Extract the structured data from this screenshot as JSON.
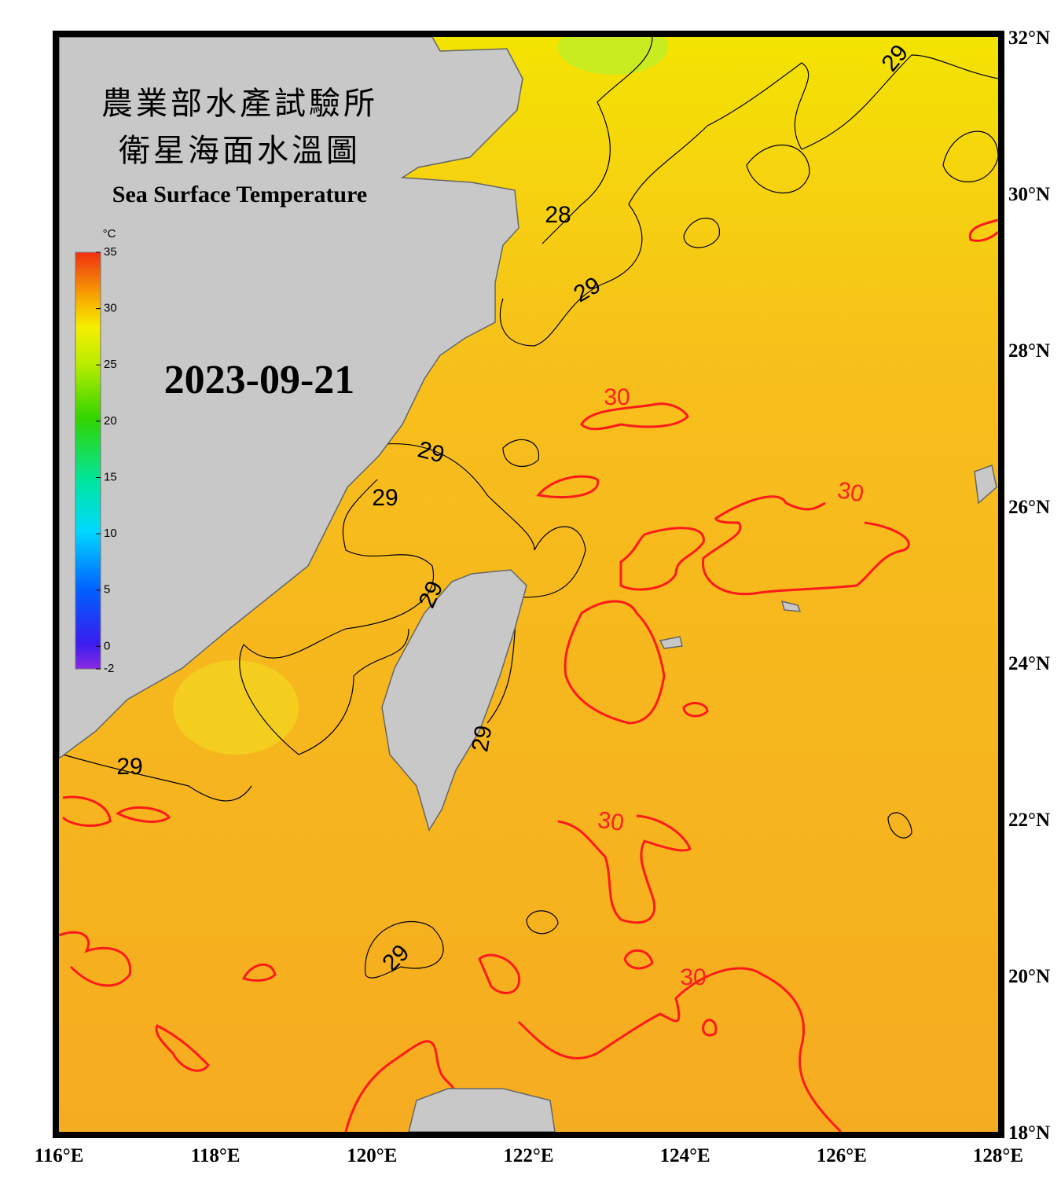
{
  "map": {
    "title_lines": [
      "農業部水產試驗所",
      "衛星海面水溫圖"
    ],
    "subtitle": "Sea Surface Temperature",
    "date": "2023-09-21",
    "lonlim": [
      116,
      128
    ],
    "latlim": [
      18,
      32
    ],
    "lon_ticks": [
      {
        "value": 116,
        "label": "116°E"
      },
      {
        "value": 118,
        "label": "118°E"
      },
      {
        "value": 120,
        "label": "120°E"
      },
      {
        "value": 122,
        "label": "122°E"
      },
      {
        "value": 124,
        "label": "124°E"
      },
      {
        "value": 126,
        "label": "126°E"
      },
      {
        "value": 128,
        "label": "128°E"
      }
    ],
    "lat_ticks": [
      {
        "value": 32,
        "label": "32°N"
      },
      {
        "value": 30,
        "label": "30°N"
      },
      {
        "value": 28,
        "label": "28°N"
      },
      {
        "value": 26,
        "label": "26°N"
      },
      {
        "value": 24,
        "label": "24°N"
      },
      {
        "value": 22,
        "label": "22°N"
      },
      {
        "value": 20,
        "label": "20°N"
      },
      {
        "value": 18,
        "label": "18°N"
      }
    ],
    "colorbar": {
      "unit": "°C",
      "lim": [
        -2,
        35
      ],
      "ticks": [
        35,
        30,
        25,
        20,
        15,
        10,
        5,
        0,
        -2
      ]
    },
    "contour_labels": [
      28,
      29,
      29,
      29,
      29,
      29,
      29,
      29,
      29,
      30,
      30,
      30,
      30
    ]
  }
}
